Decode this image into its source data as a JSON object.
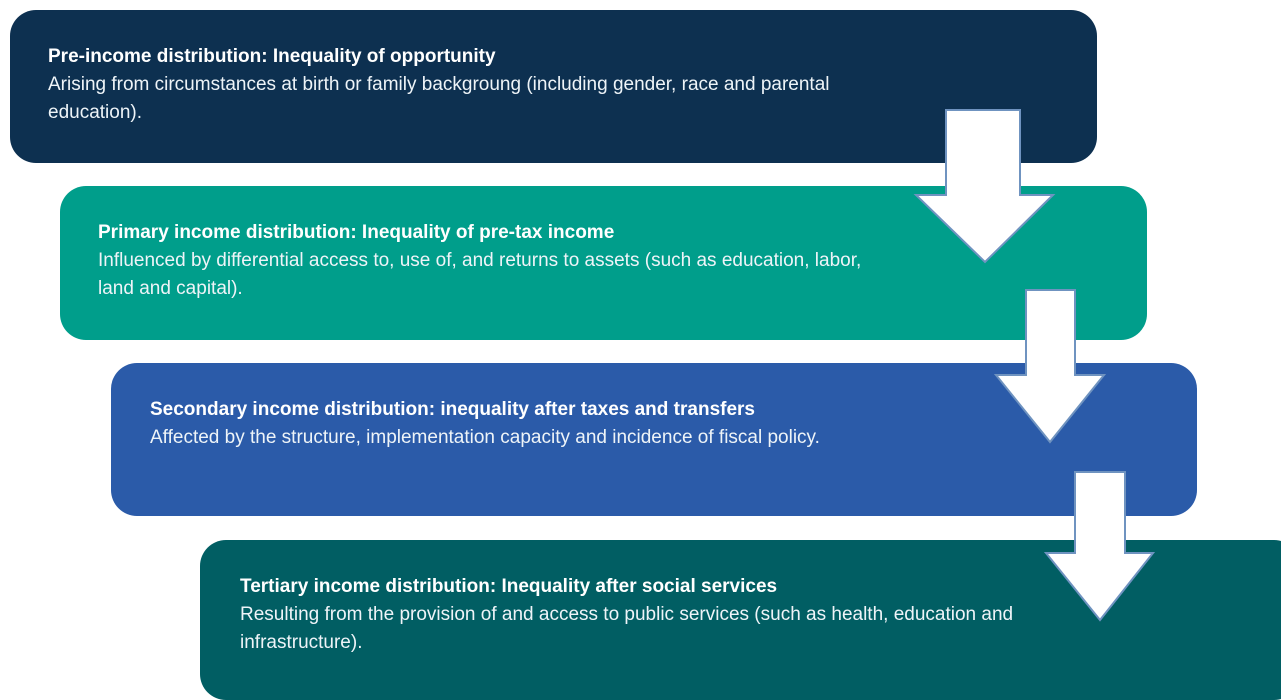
{
  "steps": [
    {
      "title": "Pre-income distribution: Inequality of opportunity",
      "description": "Arising from circumstances at birth or family backgroung (including gender, race and parental education)."
    },
    {
      "title": "Primary income distribution: Inequality of pre-tax income",
      "description": "Influenced by differential access to, use of, and returns to assets (such as education, labor, land and capital)."
    },
    {
      "title": "Secondary income distribution: inequality after taxes and transfers",
      "description": "Affected by the structure, implementation capacity and incidence of fiscal policy."
    },
    {
      "title": "Tertiary income distribution: Inequality after social services",
      "description": "Resulting from the provision of and access to public services (such as health, education and infrastructure)."
    }
  ]
}
